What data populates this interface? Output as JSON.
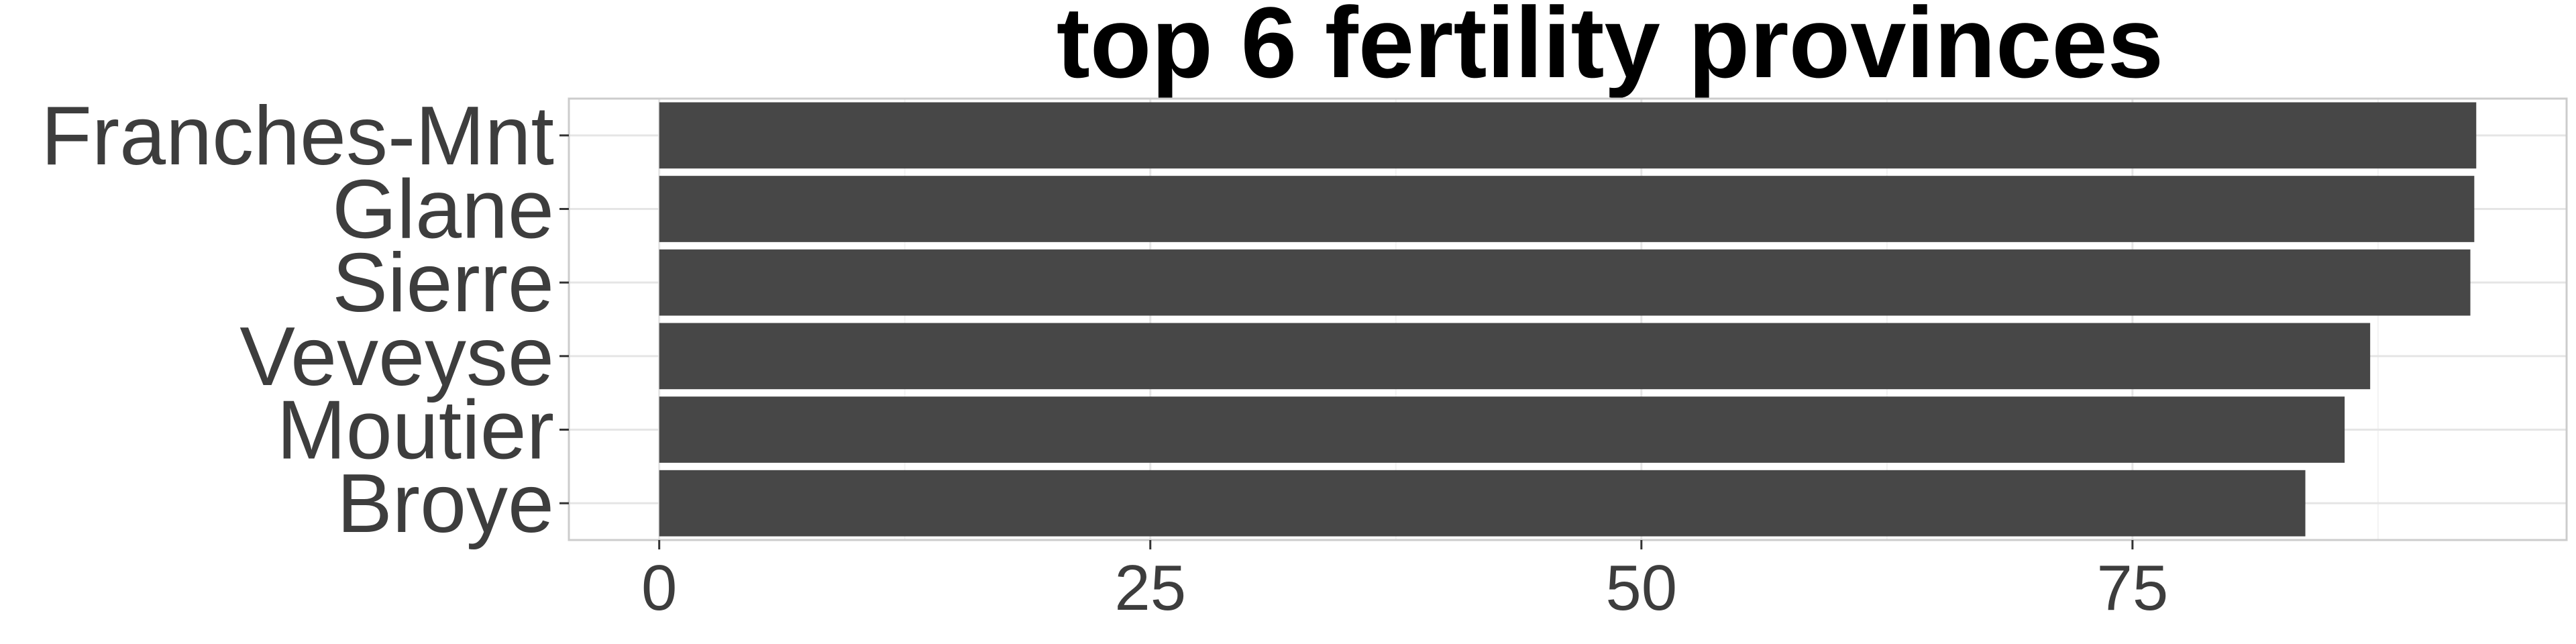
{
  "chart_data": {
    "type": "bar",
    "orientation": "horizontal",
    "title": "top 6 fertility provinces",
    "xlabel": "",
    "ylabel": "",
    "categories": [
      "Franches-Mnt",
      "Glane",
      "Sierre",
      "Veveyse",
      "Moutier",
      "Broye"
    ],
    "values": [
      92.5,
      92.4,
      92.2,
      87.1,
      85.8,
      83.8
    ],
    "xlim": [
      -4.6,
      97.1
    ],
    "x_ticks": [
      0,
      25,
      50,
      75
    ],
    "x_tick_labels": [
      "0",
      "25",
      "50",
      "75"
    ],
    "grid": true,
    "legend": "none",
    "colors": {
      "bar": "#474747",
      "grid_major": "#e5e5e5",
      "grid_minor": "#f2f2f2",
      "panel_border": "#cccccc",
      "text": "#3d3d3d",
      "title": "#000000"
    }
  }
}
